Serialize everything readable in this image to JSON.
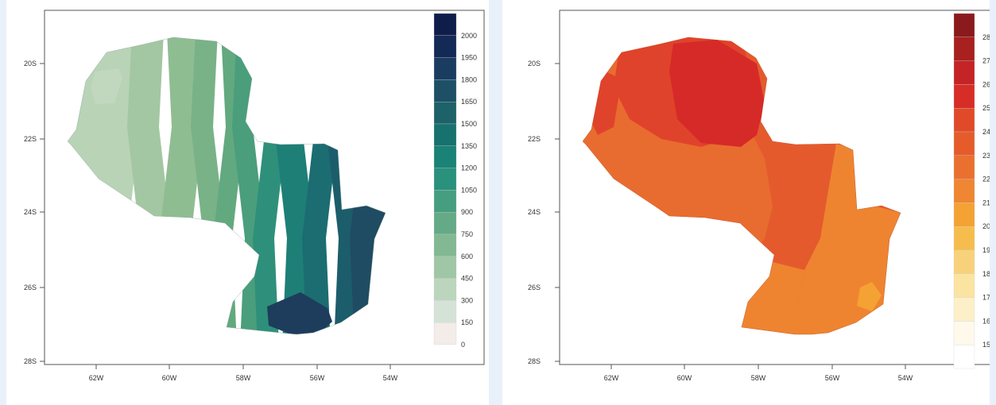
{
  "maps": [
    {
      "id": "left",
      "y_ticks": [
        "20S",
        "22S",
        "24S",
        "26S",
        "28S"
      ],
      "x_ticks": [
        "62W",
        "60W",
        "58W",
        "56W",
        "54W"
      ],
      "colorbar": {
        "labels": [
          "2000",
          "1950",
          "1800",
          "1650",
          "1500",
          "1350",
          "1200",
          "1050",
          "900",
          "750",
          "600",
          "450",
          "300",
          "150",
          "0"
        ],
        "colors": [
          "#0f1d4a",
          "#132a57",
          "#1a3c60",
          "#1d5066",
          "#1d6169",
          "#17716e",
          "#1a8276",
          "#2a917c",
          "#469e80",
          "#65aa87",
          "#82b892",
          "#a0c7a5",
          "#bcd6be",
          "#d5e3d7",
          "#f3ece9"
        ]
      },
      "region_colors": [
        "#b8d3b6",
        "#a3c7a2",
        "#8fbd92",
        "#79b287",
        "#62a97f",
        "#4a9e7c",
        "#2e907a",
        "#1e7f76",
        "#1b6d71",
        "#1c5d6b",
        "#1f4c62"
      ]
    },
    {
      "id": "right",
      "y_ticks": [
        "20S",
        "22S",
        "24S",
        "26S",
        "28S"
      ],
      "x_ticks": [
        "62W",
        "60W",
        "58W",
        "56W",
        "54W"
      ],
      "colorbar": {
        "labels": [
          "28",
          "27",
          "26",
          "25",
          "24",
          "23",
          "22",
          "21",
          "20",
          "19",
          "18",
          "17",
          "16",
          "15"
        ],
        "colors": [
          "#8b1a1c",
          "#a8201f",
          "#c52426",
          "#d72d27",
          "#e04a28",
          "#e55c2a",
          "#ea7030",
          "#ef8633",
          "#f4a233",
          "#f6bd4e",
          "#f8d27a",
          "#fbe3a2",
          "#fdefc8",
          "#fef9ea",
          "#ffffff"
        ]
      },
      "region_colors": [
        "#d62a28",
        "#e0432b",
        "#e45a2d",
        "#e86c2f",
        "#ee8430",
        "#f4a234"
      ]
    }
  ]
}
